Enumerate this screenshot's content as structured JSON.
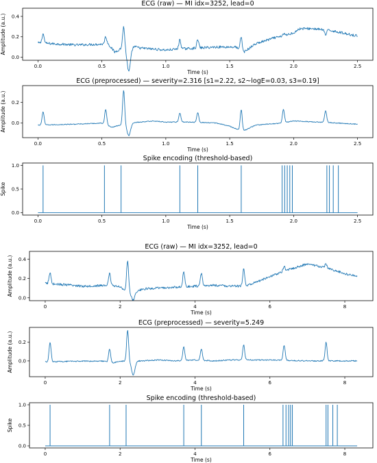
{
  "colors": {
    "line": "#1f77b4",
    "frame": "#000000"
  },
  "chart_data": [
    {
      "type": "line",
      "title": "ECG (raw) — MI idx=3252, lead=0",
      "xlabel": "Time (s)",
      "ylabel": "Amplitude (a.u.)",
      "xlim": [
        -0.12,
        2.62
      ],
      "ylim": [
        -0.03,
        0.48
      ],
      "xticks": [
        "0.0",
        "0.5",
        "1.0",
        "1.5",
        "2.0",
        "2.5"
      ],
      "xtick_values": [
        0,
        0.5,
        1,
        1.5,
        2,
        2.5
      ],
      "yticks": [
        "0.0",
        "0.2",
        "0.4"
      ],
      "ytick_values": [
        0,
        0.2,
        0.4
      ],
      "series": [
        {
          "kind": "ecg",
          "duration": 2.5,
          "baseline": [
            [
              0,
              0.14
            ],
            [
              0.3,
              0.12
            ],
            [
              0.55,
              0.13
            ],
            [
              0.6,
              0.05
            ],
            [
              0.7,
              0.12
            ],
            [
              0.8,
              0.09
            ],
            [
              1.0,
              0.07
            ],
            [
              1.1,
              0.08
            ],
            [
              1.4,
              0.1
            ],
            [
              1.55,
              0.1
            ],
            [
              1.6,
              0.04
            ],
            [
              1.7,
              0.13
            ],
            [
              1.85,
              0.19
            ],
            [
              1.9,
              0.2
            ],
            [
              2.0,
              0.24
            ],
            [
              2.05,
              0.28
            ],
            [
              2.15,
              0.28
            ],
            [
              2.3,
              0.26
            ],
            [
              2.45,
              0.22
            ],
            [
              2.5,
              0.21
            ]
          ],
          "peaks": [
            [
              0.04,
              0.23
            ],
            [
              0.53,
              0.2
            ],
            [
              0.67,
              0.3
            ],
            [
              1.11,
              0.17
            ],
            [
              1.25,
              0.17
            ],
            [
              1.59,
              0.2
            ],
            [
              1.92,
              0.23
            ],
            [
              2.25,
              0.22
            ]
          ],
          "dips": [
            [
              0.71,
              -0.14
            ]
          ],
          "noise": 0.012
        }
      ]
    },
    {
      "type": "line",
      "title": "ECG (preprocessed) — severity=2.316  [s1=2.22, s2~logE=0.03, s3=0.19]",
      "xlabel": "Time (s)",
      "ylabel": "Amplitude (a.u.)",
      "xlim": [
        -0.12,
        2.62
      ],
      "ylim": [
        -0.14,
        0.36
      ],
      "xticks": [
        "0.0",
        "0.5",
        "1.0",
        "1.5",
        "2.0",
        "2.5"
      ],
      "xtick_values": [
        0,
        0.5,
        1,
        1.5,
        2,
        2.5
      ],
      "yticks": [
        "0.0",
        "0.2"
      ],
      "ytick_values": [
        0,
        0.2
      ],
      "series": [
        {
          "kind": "ecg",
          "duration": 2.5,
          "baseline": [
            [
              0,
              -0.02
            ],
            [
              0.3,
              -0.01
            ],
            [
              0.5,
              0.0
            ],
            [
              0.58,
              -0.04
            ],
            [
              0.7,
              0.0
            ],
            [
              0.9,
              0.02
            ],
            [
              1.0,
              0.01
            ],
            [
              1.2,
              0.01
            ],
            [
              1.4,
              0.0
            ],
            [
              1.5,
              -0.03
            ],
            [
              1.6,
              -0.08
            ],
            [
              1.7,
              -0.02
            ],
            [
              1.9,
              0.0
            ],
            [
              2.0,
              0.02
            ],
            [
              2.2,
              0.01
            ],
            [
              2.5,
              -0.01
            ]
          ],
          "peaks": [
            [
              0.04,
              0.11
            ],
            [
              0.53,
              0.13
            ],
            [
              0.67,
              0.32
            ],
            [
              1.11,
              0.1
            ],
            [
              1.25,
              0.1
            ],
            [
              1.59,
              0.13
            ],
            [
              1.92,
              0.13
            ],
            [
              2.25,
              0.12
            ]
          ],
          "dips": [
            [
              0.71,
              -0.12
            ]
          ],
          "noise": 0.004
        }
      ]
    },
    {
      "type": "line",
      "title": "Spike encoding (threshold-based)",
      "xlabel": "Time (s)",
      "ylabel": "Spike",
      "xlim": [
        -0.12,
        2.62
      ],
      "ylim": [
        -0.05,
        1.05
      ],
      "xticks": [
        "0.0",
        "0.5",
        "1.0",
        "1.5",
        "2.0",
        "2.5"
      ],
      "xtick_values": [
        0,
        0.5,
        1,
        1.5,
        2,
        2.5
      ],
      "yticks": [
        "0.0",
        "0.5",
        "1.0"
      ],
      "ytick_values": [
        0,
        0.5,
        1
      ],
      "series": [
        {
          "kind": "spikes",
          "duration": 2.5,
          "spikes": [
            0.04,
            0.52,
            0.65,
            1.11,
            1.25,
            1.59,
            1.91,
            1.93,
            1.95,
            1.97,
            1.99,
            2.26,
            2.28,
            2.31,
            2.35
          ]
        }
      ]
    },
    {
      "type": "line",
      "title": "ECG (raw) — MI idx=3252, lead=0",
      "xlabel": "Time (s)",
      "ylabel": "Amplitude (a.u.)",
      "xlim": [
        -0.42,
        8.75
      ],
      "ylim": [
        -0.03,
        0.48
      ],
      "xticks": [
        "0",
        "2",
        "4",
        "6",
        "8"
      ],
      "xtick_values": [
        0,
        2,
        4,
        6,
        8
      ],
      "yticks": [
        "0.0",
        "0.2",
        "0.4"
      ],
      "ytick_values": [
        0,
        0.2,
        0.4
      ],
      "series": [
        {
          "kind": "ecg",
          "duration": 8.33,
          "baseline": [
            [
              0,
              0.15
            ],
            [
              1.0,
              0.12
            ],
            [
              1.8,
              0.13
            ],
            [
              2.0,
              0.11
            ],
            [
              2.3,
              0.05
            ],
            [
              2.6,
              0.09
            ],
            [
              3.0,
              0.1
            ],
            [
              3.6,
              0.11
            ],
            [
              4.0,
              0.12
            ],
            [
              4.5,
              0.13
            ],
            [
              5.0,
              0.12
            ],
            [
              5.3,
              0.12
            ],
            [
              5.5,
              0.14
            ],
            [
              6.0,
              0.22
            ],
            [
              6.5,
              0.29
            ],
            [
              7.0,
              0.35
            ],
            [
              7.5,
              0.31
            ],
            [
              8.0,
              0.25
            ],
            [
              8.33,
              0.22
            ]
          ],
          "peaks": [
            [
              0.13,
              0.26
            ],
            [
              1.72,
              0.25
            ],
            [
              2.2,
              0.38
            ],
            [
              3.7,
              0.27
            ],
            [
              4.17,
              0.25
            ],
            [
              5.3,
              0.3
            ],
            [
              6.38,
              0.33
            ],
            [
              7.5,
              0.35
            ]
          ],
          "dips": [
            [
              2.35,
              -0.02
            ]
          ],
          "noise": 0.012
        }
      ]
    },
    {
      "type": "line",
      "title": "ECG (preprocessed) — severity=5.249",
      "xlabel": "Time (s)",
      "ylabel": "Amplitude (a.u.)",
      "xlim": [
        -0.42,
        8.75
      ],
      "ylim": [
        -0.17,
        0.36
      ],
      "xticks": [
        "0",
        "2",
        "4",
        "6",
        "8"
      ],
      "xtick_values": [
        0,
        2,
        4,
        6,
        8
      ],
      "yticks": [
        "0.0",
        "0.2"
      ],
      "ytick_values": [
        0,
        0.2
      ],
      "series": [
        {
          "kind": "ecg",
          "duration": 8.33,
          "baseline": [
            [
              0,
              -0.01
            ],
            [
              1.5,
              0.0
            ],
            [
              1.8,
              -0.02
            ],
            [
              2.1,
              0.0
            ],
            [
              2.6,
              0.0
            ],
            [
              3.0,
              0.01
            ],
            [
              3.5,
              0.0
            ],
            [
              4.0,
              0.01
            ],
            [
              4.5,
              0.0
            ],
            [
              5.0,
              0.01
            ],
            [
              6.0,
              0.01
            ],
            [
              7.0,
              0.0
            ],
            [
              8.33,
              0.0
            ]
          ],
          "peaks": [
            [
              0.13,
              0.2
            ],
            [
              1.72,
              0.13
            ],
            [
              2.2,
              0.33
            ],
            [
              3.7,
              0.15
            ],
            [
              4.17,
              0.13
            ],
            [
              5.3,
              0.17
            ],
            [
              6.38,
              0.17
            ],
            [
              7.5,
              0.2
            ]
          ],
          "dips": [
            [
              2.35,
              -0.15
            ]
          ],
          "noise": 0.006
        }
      ]
    },
    {
      "type": "line",
      "title": "Spike encoding (threshold-based)",
      "xlabel": "Time (s)",
      "ylabel": "Spike",
      "xlim": [
        -0.42,
        8.75
      ],
      "ylim": [
        -0.05,
        1.05
      ],
      "xticks": [
        "0",
        "2",
        "4",
        "6",
        "8"
      ],
      "xtick_values": [
        0,
        2,
        4,
        6,
        8
      ],
      "yticks": [
        "0.0",
        "0.5",
        "1.0"
      ],
      "ytick_values": [
        0,
        0.5,
        1
      ],
      "series": [
        {
          "kind": "spikes",
          "duration": 8.33,
          "spikes": [
            0.13,
            1.72,
            2.16,
            3.7,
            4.17,
            5.3,
            6.35,
            6.43,
            6.5,
            6.55,
            6.6,
            7.5,
            7.55,
            7.68,
            7.8
          ]
        }
      ]
    }
  ]
}
